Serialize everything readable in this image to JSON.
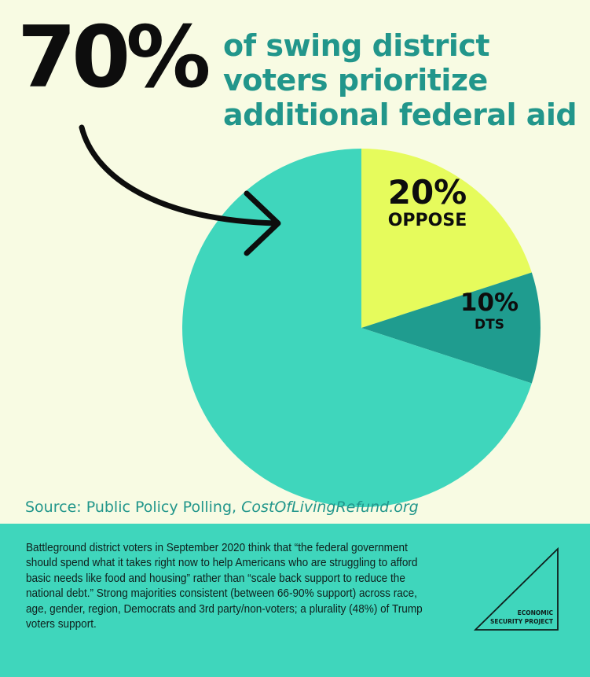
{
  "headline": {
    "stat": "70%",
    "lines": [
      "of swing district",
      "voters prioritize",
      "additional federal aid"
    ]
  },
  "chart_data": {
    "type": "pie",
    "slices": [
      {
        "label": "OPPOSE",
        "value": 20,
        "display": "20%",
        "color": "#e6fb5c"
      },
      {
        "label": "DTS",
        "value": 10,
        "display": "10%",
        "color": "#1f9c8f"
      },
      {
        "label": "",
        "value": 70,
        "display": "",
        "color": "#3fd6bc"
      }
    ],
    "start": "12 o'clock",
    "direction": "clockwise"
  },
  "source": {
    "prefix": "Source: Public Policy Polling, ",
    "link": "CostOfLivingRefund.org"
  },
  "footer": {
    "text": "Battleground district voters in September 2020 think that “the federal government should spend what it takes right now to help Americans who are struggling to afford basic needs like food and housing” rather than “scale back support to reduce the national debt.”  Strong majorities consistent (between 66-90% support) across race, age, gender, region, Democrats and 3rd party/non-voters; a plurality (48%) of Trump voters support.",
    "logo_line1": "ECONOMIC",
    "logo_line2": "SECURITY PROJECT"
  },
  "colors": {
    "background": "#f8fbe3",
    "accent": "#22968b",
    "support": "#3fd6bc",
    "oppose": "#e6fb5c",
    "dts": "#1f9c8f"
  }
}
